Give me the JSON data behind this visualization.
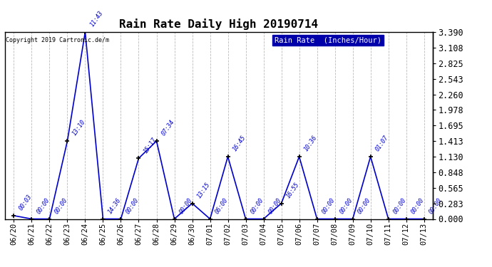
{
  "title": "Rain Rate Daily High 20190714",
  "copyright": "Copyright 2019 Cartronic.de/m",
  "legend_label": "Rain Rate  (Inches/Hour)",
  "yticks": [
    0.0,
    0.283,
    0.565,
    0.848,
    1.13,
    1.413,
    1.695,
    1.978,
    2.26,
    2.543,
    2.825,
    3.108,
    3.39
  ],
  "ylim": [
    0.0,
    3.39
  ],
  "dates": [
    "06/20",
    "06/21",
    "06/22",
    "06/23",
    "06/24",
    "06/25",
    "06/26",
    "06/27",
    "06/28",
    "06/29",
    "06/30",
    "07/01",
    "07/02",
    "07/03",
    "07/04",
    "07/05",
    "07/06",
    "07/07",
    "07/08",
    "07/09",
    "07/10",
    "07/11",
    "07/12",
    "07/13"
  ],
  "values": [
    0.06,
    0.0,
    0.0,
    1.413,
    3.39,
    0.0,
    0.0,
    1.1,
    1.413,
    0.0,
    0.283,
    0.0,
    1.13,
    0.0,
    0.0,
    0.283,
    1.13,
    0.0,
    0.0,
    0.0,
    1.13,
    0.0,
    0.0,
    0.0
  ],
  "time_labels": [
    "00:03",
    "00:00",
    "00:00",
    "13:10",
    "11:43",
    "14:36",
    "00:00",
    "15:17",
    "07:34",
    "00:00",
    "13:15",
    "06:00",
    "16:45",
    "00:00",
    "00:00",
    "16:55",
    "10:36",
    "00:00",
    "00:00",
    "00:00",
    "01:07",
    "00:00",
    "00:00",
    "00:00"
  ],
  "line_color": "#0000cc",
  "marker_color": "#000000",
  "bg_color": "#ffffff",
  "grid_color": "#bbbbbb",
  "title_color": "#000000",
  "label_color": "#0000cc",
  "legend_bg": "#0000aa",
  "legend_fg": "#ffffff",
  "figsize": [
    6.9,
    3.75
  ],
  "dpi": 100
}
